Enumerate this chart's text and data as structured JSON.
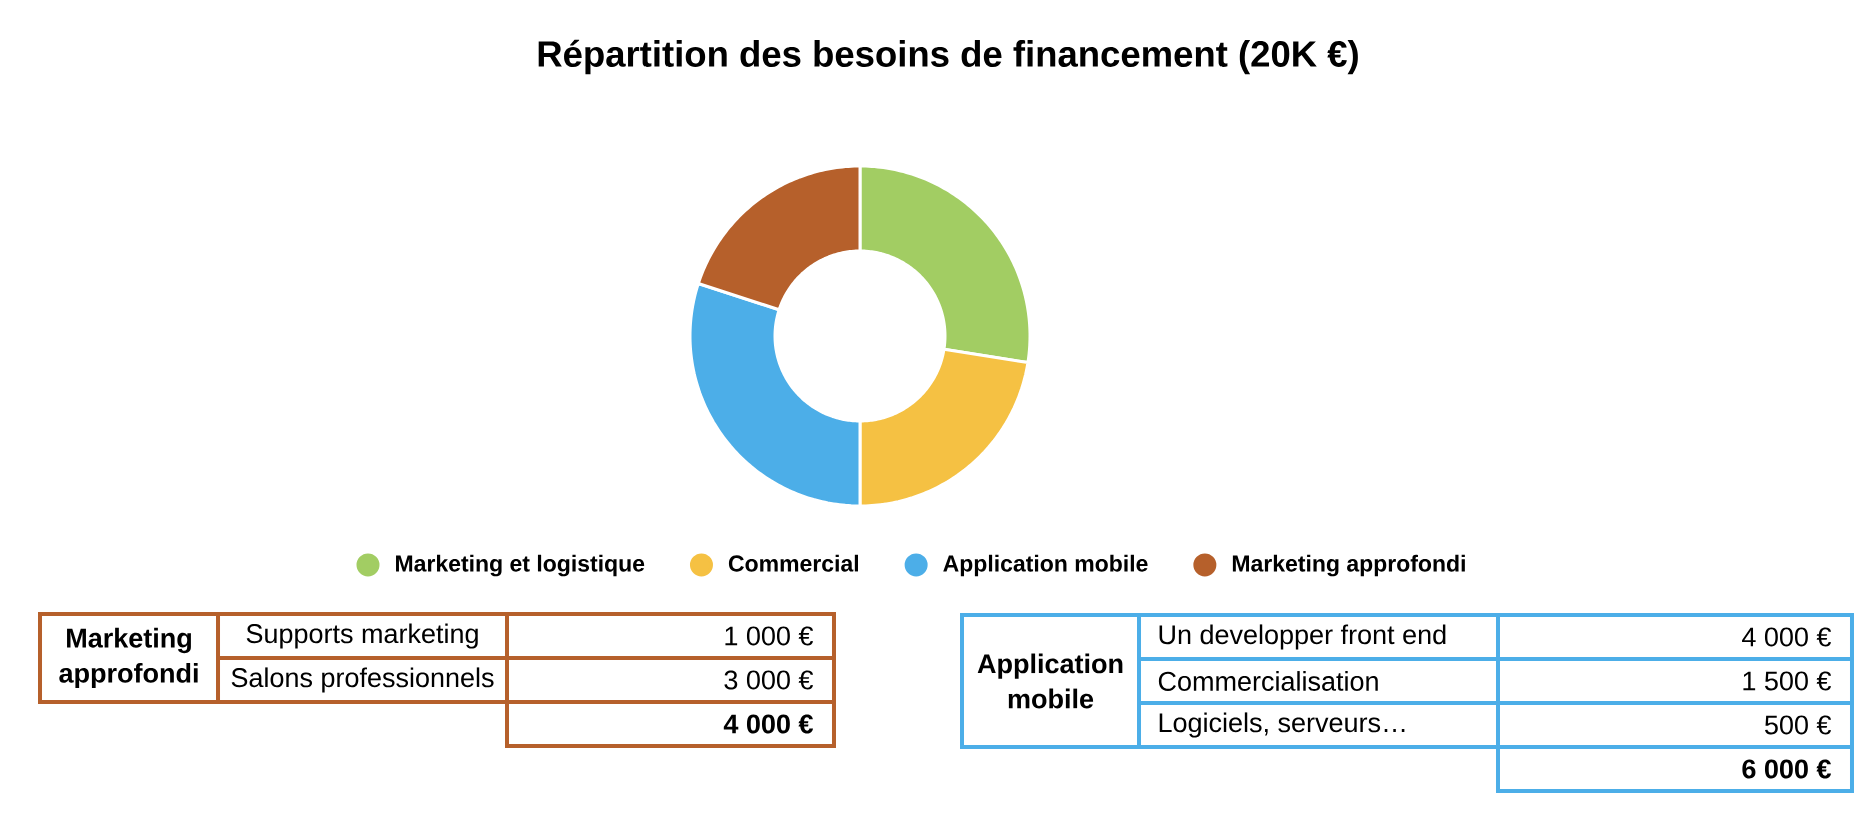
{
  "chart_data": [
    {
      "type": "donut",
      "title": "Répartition des besoins de financement (20K €)",
      "categories": [
        "Marketing et logistique",
        "Commercial",
        "Application mobile",
        "Marketing approfondi"
      ],
      "values": [
        27.5,
        22.5,
        30,
        20
      ],
      "colors": [
        "#a2cd63",
        "#f5c143",
        "#4caee8",
        "#b6602b"
      ],
      "legend": "bottom"
    },
    {
      "type": "other",
      "title": "Marketing approfondi",
      "categories": [
        "Supports marketing",
        "Salons professionnels"
      ],
      "values": [
        1000,
        3000
      ],
      "value_labels": [
        "1 000 €",
        "3 000 €"
      ],
      "totals": [
        "4 000 €"
      ],
      "color": "#b6602b"
    },
    {
      "type": "other",
      "title": "Application mobile",
      "categories": [
        "Un developper front end",
        "Commercialisation",
        "Logiciels, serveurs…"
      ],
      "values": [
        4000,
        1500,
        500
      ],
      "value_labels": [
        "4 000 €",
        "1 500 €",
        "500 €"
      ],
      "totals": [
        "6 000 €"
      ],
      "color": "#4caee8"
    }
  ]
}
